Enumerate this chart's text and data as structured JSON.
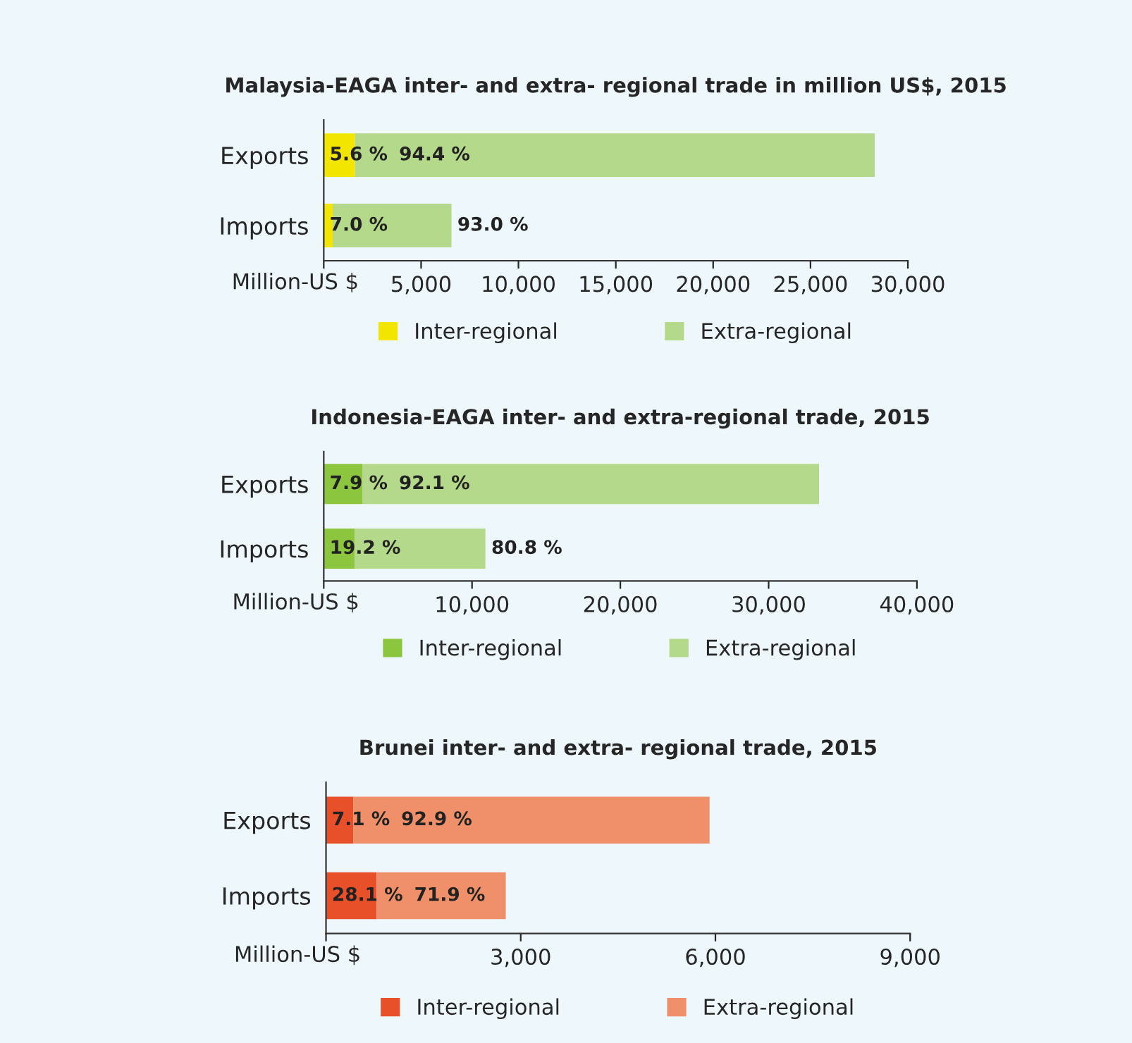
{
  "chart_data": [
    {
      "type": "bar",
      "orientation": "horizontal",
      "stacked": true,
      "title": "Malaysia-EAGA inter- and extra- regional trade in million US$, 2015",
      "xlabel": "Million-US $",
      "categories": [
        "Exports",
        "Imports"
      ],
      "series": [
        {
          "name": "Inter-regional",
          "color": "#f2e600",
          "values": [
            1600,
            460
          ]
        },
        {
          "name": "Extra-regional",
          "color": "#b5d98a",
          "values": [
            26700,
            6100
          ]
        }
      ],
      "annotations": [
        {
          "text": "5.6 %",
          "x": 0,
          "y": "Exports"
        },
        {
          "text": "94.4 %",
          "x": 1600,
          "y": "Exports"
        },
        {
          "text": "7.0 %",
          "x": 0,
          "y": "Imports"
        },
        {
          "text": "93.0 %",
          "x": 6560,
          "y": "Imports"
        }
      ],
      "xlim": [
        0,
        30000
      ],
      "xticks": [
        {
          "value": 0,
          "label": null
        },
        {
          "value": 5000,
          "label": "5,000"
        },
        {
          "value": 10000,
          "label": "10,000"
        },
        {
          "value": 15000,
          "label": "15,000"
        },
        {
          "value": 20000,
          "label": "20,000"
        },
        {
          "value": 25000,
          "label": "25,000"
        },
        {
          "value": 30000,
          "label": "30,000"
        }
      ],
      "legend": "bottom"
    },
    {
      "type": "bar",
      "orientation": "horizontal",
      "stacked": true,
      "title": "Indonesia-EAGA inter- and extra-regional trade, 2015",
      "xlabel": "Million-US $",
      "categories": [
        "Exports",
        "Imports"
      ],
      "series": [
        {
          "name": "Inter-regional",
          "color": "#8cc63f",
          "values": [
            2600,
            2100
          ]
        },
        {
          "name": "Extra-regional",
          "color": "#b5d98a",
          "values": [
            30800,
            8800
          ]
        }
      ],
      "annotations": [
        {
          "text": "7.9 %",
          "x": 0,
          "y": "Exports"
        },
        {
          "text": "92.1 %",
          "x": 2600,
          "y": "Exports"
        },
        {
          "text": "19.2 %",
          "x": 0,
          "y": "Imports"
        },
        {
          "text": "80.8 %",
          "x": 10900,
          "y": "Imports"
        }
      ],
      "xlim": [
        0,
        40000
      ],
      "xticks": [
        {
          "value": 0,
          "label": null
        },
        {
          "value": 10000,
          "label": "10,000"
        },
        {
          "value": 20000,
          "label": "20,000"
        },
        {
          "value": 30000,
          "label": "30,000"
        },
        {
          "value": 40000,
          "label": "40,000"
        }
      ],
      "legend": "bottom"
    },
    {
      "type": "bar",
      "orientation": "horizontal",
      "stacked": true,
      "title": "Brunei inter- and extra- regional trade, 2015",
      "xlabel": "Million-US $",
      "categories": [
        "Exports",
        "Imports"
      ],
      "series": [
        {
          "name": "Inter-regional",
          "color": "#e8502a",
          "values": [
            420,
            780
          ]
        },
        {
          "name": "Extra-regional",
          "color": "#f0906a",
          "values": [
            5490,
            1990
          ]
        }
      ],
      "annotations": [
        {
          "text": "7.1 %",
          "x": 0,
          "y": "Exports"
        },
        {
          "text": "92.9 %",
          "x": 420,
          "y": "Exports"
        },
        {
          "text": "28.1 %",
          "x": 0,
          "y": "Imports"
        },
        {
          "text": "71.9 %",
          "x": 780,
          "y": "Imports"
        }
      ],
      "xlim": [
        0,
        9000
      ],
      "xticks": [
        {
          "value": 0,
          "label": null
        },
        {
          "value": 3000,
          "label": "3,000"
        },
        {
          "value": 6000,
          "label": "6,000"
        },
        {
          "value": 9000,
          "label": "9,000"
        }
      ],
      "legend": "bottom"
    }
  ]
}
